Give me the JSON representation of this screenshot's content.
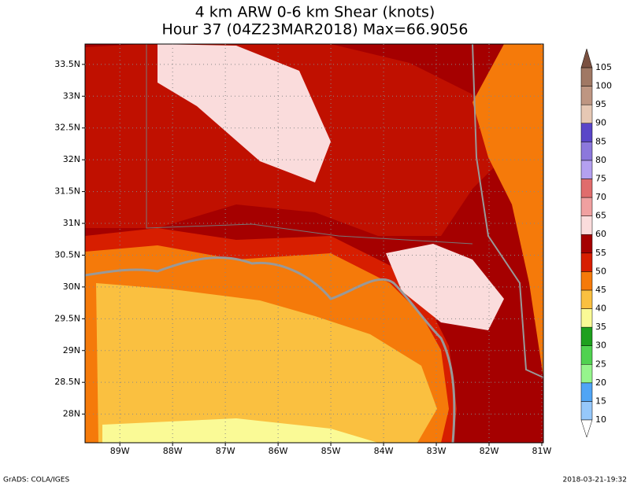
{
  "title": "4 km ARW 0-6 km Shear (knots)",
  "subtitle": "Hour 37 (04Z23MAR2018) Max=66.9056",
  "map": {
    "xlim": [
      -89.66,
      -80.97
    ],
    "ylim": [
      27.55,
      33.82
    ],
    "xticks": [
      {
        "value": -89,
        "label": "89W"
      },
      {
        "value": -88,
        "label": "88W"
      },
      {
        "value": -87,
        "label": "87W"
      },
      {
        "value": -86,
        "label": "86W"
      },
      {
        "value": -85,
        "label": "85W"
      },
      {
        "value": -84,
        "label": "84W"
      },
      {
        "value": -83,
        "label": "83W"
      },
      {
        "value": -82,
        "label": "82W"
      },
      {
        "value": -81,
        "label": "81W"
      }
    ],
    "yticks": [
      {
        "value": 28,
        "label": "28N"
      },
      {
        "value": 28.5,
        "label": "28.5N"
      },
      {
        "value": 29,
        "label": "29N"
      },
      {
        "value": 29.5,
        "label": "29.5N"
      },
      {
        "value": 30,
        "label": "30N"
      },
      {
        "value": 30.5,
        "label": "30.5N"
      },
      {
        "value": 31,
        "label": "31N"
      },
      {
        "value": 31.5,
        "label": "31.5N"
      },
      {
        "value": 32,
        "label": "32N"
      },
      {
        "value": 32.5,
        "label": "32.5N"
      },
      {
        "value": 33,
        "label": "33N"
      },
      {
        "value": 33.5,
        "label": "33.5N"
      }
    ]
  },
  "colorbar": {
    "levels": [
      10,
      15,
      20,
      25,
      30,
      35,
      40,
      45,
      50,
      55,
      60,
      65,
      70,
      75,
      80,
      85,
      90,
      95,
      100,
      105
    ],
    "colors": [
      "#ffffff",
      "#96c8fa",
      "#50a5f5",
      "#96f58c",
      "#50d250",
      "#1ea01e",
      "#fafa96",
      "#fac040",
      "#f57a0a",
      "#d71e00",
      "#a50000",
      "#fadcdc",
      "#f0a0a0",
      "#e06c6c",
      "#b4a0f0",
      "#8c78dc",
      "#5a46c8",
      "#e6c8b4",
      "#be9682",
      "#a07864",
      "#7a5040"
    ]
  },
  "footer_left": "GrADS: COLA/IGES",
  "footer_right": "2018-03-21-19:32"
}
